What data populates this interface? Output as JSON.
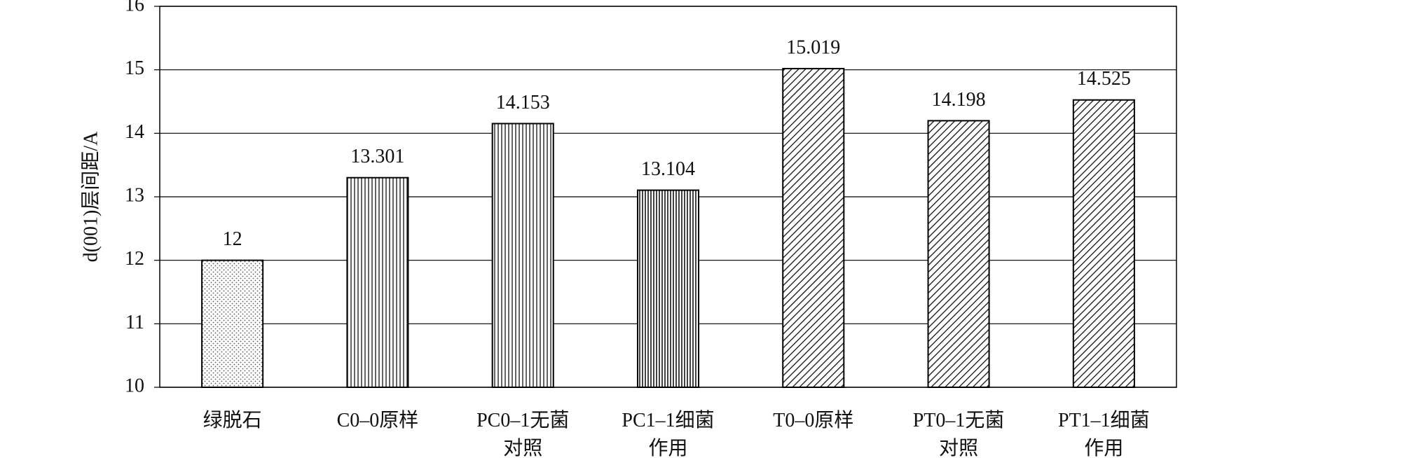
{
  "chart_data": {
    "type": "bar",
    "y_label": "d(001)层间距/A",
    "categories": [
      "绿脱石",
      "C0–0原样",
      "PC0–1无菌\n对照",
      "PC1–1细菌\n作用",
      "T0–0原样",
      "PT0–1无菌\n对照",
      "PT1–1细菌\n作用"
    ],
    "values": [
      12,
      13.301,
      14.153,
      13.104,
      15.019,
      14.198,
      14.525
    ],
    "patterns": [
      "dots",
      "vertical",
      "vertical",
      "vertical-dense",
      "diagonal",
      "diagonal",
      "diagonal"
    ],
    "color": "#000000",
    "ylim": [
      10,
      16
    ],
    "yticks": [
      10,
      11,
      12,
      13,
      14,
      15,
      16
    ],
    "grid": true
  }
}
